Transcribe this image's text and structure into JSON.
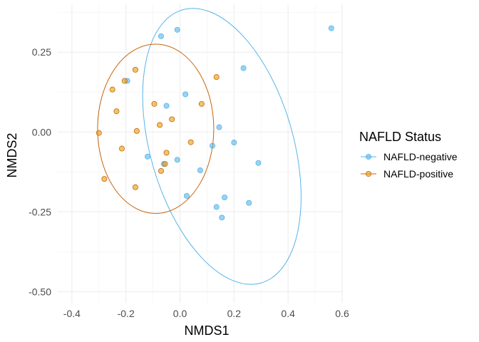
{
  "chart_data": {
    "type": "scatter",
    "xlabel": "NMDS1",
    "ylabel": "NMDS2",
    "xlim": [
      -0.455,
      0.6
    ],
    "ylim": [
      -0.535,
      0.4
    ],
    "x_ticks": [
      -0.4,
      -0.2,
      0.0,
      0.2,
      0.4,
      0.6
    ],
    "x_tick_labels": [
      "-0.4",
      "-0.2",
      "0.0",
      "0.2",
      "0.4",
      "0.6"
    ],
    "y_ticks": [
      -0.5,
      -0.25,
      0.0,
      0.25
    ],
    "y_tick_labels": [
      "-0.50",
      "-0.25",
      "0.00",
      "0.25"
    ],
    "grid": true,
    "legend": {
      "title": "NAFLD Status",
      "placement": "right"
    },
    "series": [
      {
        "name": "NAFLD-negative",
        "color": "#56B4E9",
        "points": [
          [
            -0.07,
            0.3
          ],
          [
            -0.01,
            0.32
          ],
          [
            0.56,
            0.325
          ],
          [
            0.235,
            0.2
          ],
          [
            -0.195,
            0.16
          ],
          [
            0.02,
            0.118
          ],
          [
            -0.05,
            0.082
          ],
          [
            0.145,
            0.015
          ],
          [
            0.2,
            -0.033
          ],
          [
            0.12,
            -0.043
          ],
          [
            0.29,
            -0.097
          ],
          [
            -0.12,
            -0.077
          ],
          [
            -0.01,
            -0.087
          ],
          [
            0.075,
            -0.12
          ],
          [
            -0.06,
            -0.1
          ],
          [
            0.025,
            -0.2
          ],
          [
            0.165,
            -0.205
          ],
          [
            0.255,
            -0.222
          ],
          [
            0.135,
            -0.235
          ],
          [
            0.155,
            -0.268
          ]
        ],
        "ellipse": {
          "center": [
            0.155,
            -0.045
          ],
          "semi_x": 0.265,
          "semi_y": 0.445,
          "angle_deg": 16
        }
      },
      {
        "name": "NAFLD-positive",
        "color": "#E69F00",
        "points": [
          [
            -0.25,
            0.133
          ],
          [
            -0.205,
            0.16
          ],
          [
            -0.165,
            0.195
          ],
          [
            0.135,
            0.172
          ],
          [
            -0.235,
            0.065
          ],
          [
            -0.095,
            0.088
          ],
          [
            0.08,
            0.088
          ],
          [
            -0.075,
            0.022
          ],
          [
            -0.03,
            0.04
          ],
          [
            -0.16,
            0.003
          ],
          [
            -0.3,
            -0.003
          ],
          [
            -0.215,
            -0.052
          ],
          [
            0.04,
            -0.032
          ],
          [
            -0.05,
            -0.065
          ],
          [
            -0.055,
            -0.1
          ],
          [
            -0.07,
            -0.122
          ],
          [
            -0.28,
            -0.147
          ],
          [
            -0.165,
            -0.173
          ]
        ],
        "ellipse": {
          "center": [
            -0.09,
            0.01
          ],
          "semi_x": 0.215,
          "semi_y": 0.265,
          "angle_deg": 0
        }
      }
    ]
  }
}
